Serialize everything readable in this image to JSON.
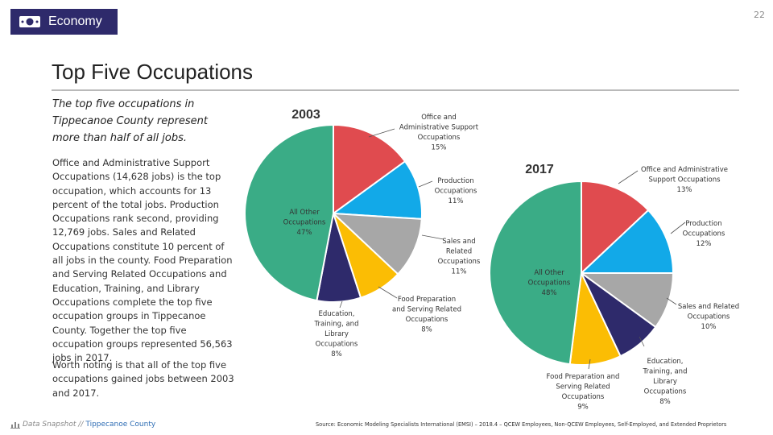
{
  "header": {
    "section_label": "Economy",
    "page_number": "22",
    "badge_color": "#2e2a6b",
    "icon": "money-icon"
  },
  "title": "Top Five Occupations",
  "text": {
    "lead": "The top five occupations in Tippecanoe County represent more than half of all jobs.",
    "paragraph1": "Office and Administrative Support Occupations (14,628 jobs) is the top occupation, which accounts for 13 percent of the total jobs. Production Occupations rank second, providing 12,769 jobs. Sales and Related Occupations constitute 10 percent of all jobs in the county. Food Preparation and Serving Related Occupations and Education, Training, and Library Occupations complete the top five occupation groups in Tippecanoe County. Together the top five occupation groups represented 56,563 jobs in 2017.",
    "paragraph2": "Worth noting is that all of the top five occupations gained jobs between 2003 and 2017."
  },
  "footer": {
    "brand": "Data Snapshot //",
    "county": "Tippecanoe County",
    "source": "Source: Economic Modeling Specialists International (EMSI) – 2018.4 – QCEW Employees, Non-QCEW Employees, Self-Employed, and Extended Proprietors"
  },
  "chart_data": [
    {
      "type": "pie",
      "title": "2003",
      "slices": [
        {
          "label": [
            "Office and",
            "Administrative Support",
            "Occupations",
            "15%"
          ],
          "value": 15,
          "color": "#e04b4f"
        },
        {
          "label": [
            "Production",
            "Occupations",
            "11%"
          ],
          "value": 11,
          "color": "#12a9e8"
        },
        {
          "label": [
            "Sales and",
            "Related",
            "Occupations",
            "11%"
          ],
          "value": 11,
          "color": "#a7a7a7"
        },
        {
          "label": [
            "Food Preparation",
            "and Serving Related",
            "Occupations",
            "8%"
          ],
          "value": 8,
          "color": "#fbbd04"
        },
        {
          "label": [
            "Education,",
            "Training, and",
            "Library",
            "Occupations",
            "8%"
          ],
          "value": 8,
          "color": "#2e2a6b"
        },
        {
          "label": [
            "All Other",
            "Occupations",
            "47%"
          ],
          "value": 47,
          "color": "#3aac86"
        }
      ]
    },
    {
      "type": "pie",
      "title": "2017",
      "slices": [
        {
          "label": [
            "Office and Administrative",
            "Support Occupations",
            "13%"
          ],
          "value": 13,
          "color": "#e04b4f"
        },
        {
          "label": [
            "Production",
            "Occupations",
            "12%"
          ],
          "value": 12,
          "color": "#12a9e8"
        },
        {
          "label": [
            "Sales and Related",
            "Occupations",
            "10%"
          ],
          "value": 10,
          "color": "#a7a7a7"
        },
        {
          "label": [
            "Education,",
            "Training, and",
            "Library",
            "Occupations",
            "8%"
          ],
          "value": 8,
          "color": "#2e2a6b"
        },
        {
          "label": [
            "Food Preparation and",
            "Serving Related",
            "Occupations",
            "9%"
          ],
          "value": 9,
          "color": "#fbbd04"
        },
        {
          "label": [
            "All Other",
            "Occupations",
            "48%"
          ],
          "value": 48,
          "color": "#3aac86"
        }
      ]
    }
  ]
}
